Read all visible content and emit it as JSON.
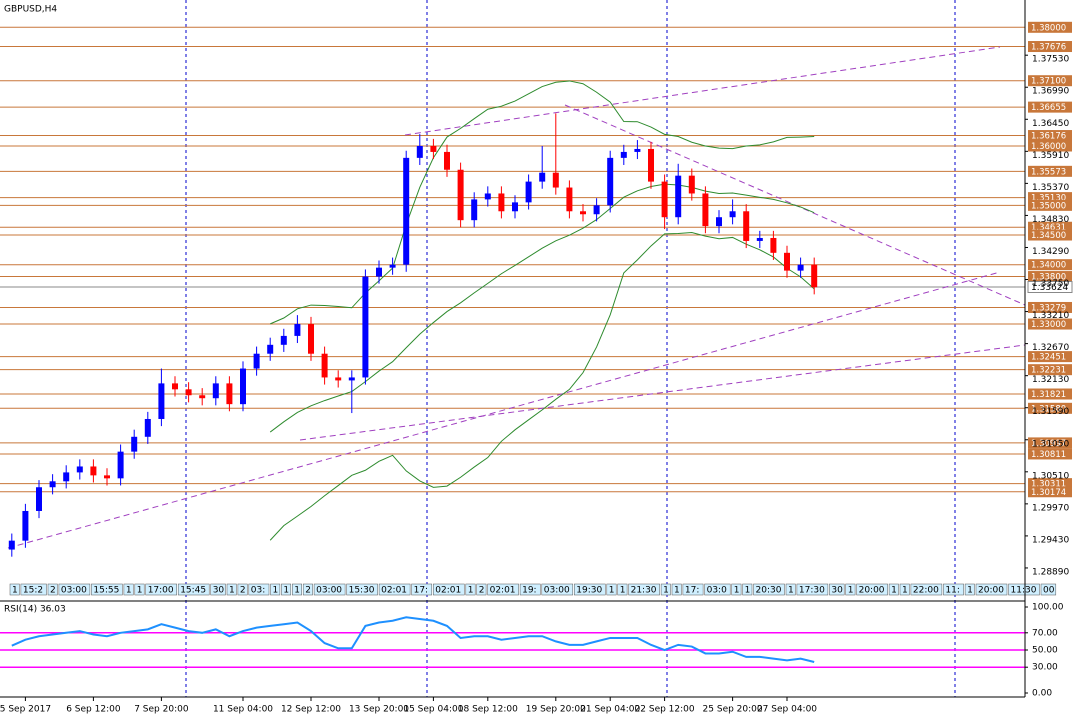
{
  "chart_data": {
    "type": "candlestick",
    "title": "GBPUSD,H4",
    "ylim": [
      1.2835,
      1.3846
    ],
    "yticks": [
      {
        "value": 1.2889,
        "label": "1.28890"
      },
      {
        "value": 1.2943,
        "label": "1.29430"
      },
      {
        "value": 1.2997,
        "label": "1.29970"
      },
      {
        "value": 1.3051,
        "label": "1.30510"
      },
      {
        "value": 1.3105,
        "label": "1.31050"
      },
      {
        "value": 1.3159,
        "label": "1.31590"
      },
      {
        "value": 1.3213,
        "label": "1.32130"
      },
      {
        "value": 1.3267,
        "label": "1.32670"
      },
      {
        "value": 1.3321,
        "label": "1.33210"
      },
      {
        "value": 1.3375,
        "label": "1.33750"
      },
      {
        "value": 1.3429,
        "label": "1.34290"
      },
      {
        "value": 1.3483,
        "label": "1.34830"
      },
      {
        "value": 1.3537,
        "label": "1.35370"
      },
      {
        "value": 1.3591,
        "label": "1.35910"
      },
      {
        "value": 1.3645,
        "label": "1.36450"
      },
      {
        "value": 1.3699,
        "label": "1.36990"
      },
      {
        "value": 1.3753,
        "label": "1.37530"
      }
    ],
    "levels": [
      {
        "value": 1.38,
        "label": "1.38000"
      },
      {
        "value": 1.37676,
        "label": "1.37676"
      },
      {
        "value": 1.371,
        "label": "1.37100"
      },
      {
        "value": 1.36655,
        "label": "1.36655"
      },
      {
        "value": 1.36176,
        "label": "1.36176"
      },
      {
        "value": 1.36,
        "label": "1.36000"
      },
      {
        "value": 1.35573,
        "label": "1.35573"
      },
      {
        "value": 1.3513,
        "label": "1.35130"
      },
      {
        "value": 1.35,
        "label": "1.35000"
      },
      {
        "value": 1.34631,
        "label": "1.34631"
      },
      {
        "value": 1.345,
        "label": "1.34500"
      },
      {
        "value": 1.34,
        "label": "1.34000"
      },
      {
        "value": 1.338,
        "label": "1.33800"
      },
      {
        "value": 1.33279,
        "label": "1.33279"
      },
      {
        "value": 1.33,
        "label": "1.33000"
      },
      {
        "value": 1.32451,
        "label": "1.32451"
      },
      {
        "value": 1.32231,
        "label": "1.32231"
      },
      {
        "value": 1.31821,
        "label": "1.31821"
      },
      {
        "value": 1.3158,
        "label": "1.31580"
      },
      {
        "value": 1.30997,
        "label": "1.30997"
      },
      {
        "value": 1.30811,
        "label": "1.30811"
      },
      {
        "value": 1.30311,
        "label": "1.30311"
      },
      {
        "value": 1.30174,
        "label": "1.30174"
      }
    ],
    "level_color": "#c8773a",
    "current_price": {
      "value": 1.33624,
      "label": "1.33624"
    },
    "x_labels": [
      "5 Sep 2017",
      "6 Sep 12:00",
      "7 Sep 20:00",
      "11 Sep 04:00",
      "12 Sep 12:00",
      "13 Sep 20:00",
      "15 Sep 04:00",
      "18 Sep 12:00",
      "19 Sep 20:00",
      "21 Sep 04:00",
      "22 Sep 12:00",
      "25 Sep 20:00",
      "27 Sep 04:00"
    ],
    "x_label_index": [
      1,
      6,
      11,
      17,
      22,
      27,
      31,
      35,
      40,
      44,
      48,
      53,
      57
    ],
    "time_markers": [
      "1",
      "15:2",
      "2",
      "03:00",
      "15:55",
      "1",
      "1",
      "17:00",
      "15:45",
      "30",
      "1",
      "2",
      "03:",
      "1",
      "1",
      "1",
      "2",
      "03:00",
      "15:30",
      "02:01",
      "17:",
      "02:01",
      "1",
      "2",
      "02:01",
      "19:",
      "03:00",
      "19:30",
      "1",
      "1",
      "21:30",
      "1",
      "1",
      "17:",
      "03:0",
      "1",
      "1",
      "20:30",
      "1",
      "17:30",
      "30",
      "1",
      "20:00",
      "1",
      "1",
      "22:00",
      "11:",
      "1",
      "20:00",
      "11:30",
      "00"
    ],
    "up_color": "#0000ff",
    "down_color": "#ff0000",
    "bands_color": "#2e8b2e",
    "open": [
      1.292,
      1.2935,
      1.2985,
      1.3025,
      1.3035,
      1.305,
      1.306,
      1.3045,
      1.304,
      1.3085,
      1.311,
      1.314,
      1.32,
      1.319,
      1.318,
      1.3175,
      1.32,
      1.3165,
      1.3225,
      1.325,
      1.3265,
      1.328,
      1.33,
      1.325,
      1.321,
      1.3205,
      1.321,
      1.338,
      1.3395,
      1.34,
      1.358,
      1.36,
      1.359,
      1.356,
      1.3475,
      1.351,
      1.352,
      1.349,
      1.3505,
      1.354,
      1.3555,
      1.353,
      1.349,
      1.3485,
      1.35,
      1.358,
      1.359,
      1.3595,
      1.354,
      1.348,
      1.355,
      1.352,
      1.3465,
      1.348,
      1.349,
      1.344,
      1.3445,
      1.342,
      1.339,
      1.34
    ],
    "high": [
      1.2947,
      1.2997,
      1.3037,
      1.3047,
      1.3062,
      1.3072,
      1.3072,
      1.3057,
      1.3097,
      1.3122,
      1.3152,
      1.3225,
      1.3212,
      1.3202,
      1.3192,
      1.3212,
      1.3212,
      1.3237,
      1.3262,
      1.3277,
      1.3292,
      1.3315,
      1.3312,
      1.3262,
      1.3222,
      1.3222,
      1.3392,
      1.3407,
      1.3412,
      1.3592,
      1.362,
      1.3612,
      1.3602,
      1.3572,
      1.3522,
      1.3532,
      1.3532,
      1.3517,
      1.3552,
      1.36,
      1.3655,
      1.3542,
      1.3502,
      1.3512,
      1.3592,
      1.3602,
      1.361,
      1.3607,
      1.3552,
      1.357,
      1.3562,
      1.3532,
      1.3492,
      1.351,
      1.3502,
      1.3457,
      1.3457,
      1.3432,
      1.3412,
      1.3412
    ],
    "low": [
      1.2908,
      1.2923,
      1.2973,
      1.3013,
      1.3023,
      1.3038,
      1.3033,
      1.3028,
      1.3028,
      1.3073,
      1.3098,
      1.3128,
      1.3178,
      1.3168,
      1.3163,
      1.3163,
      1.3153,
      1.3153,
      1.3213,
      1.3238,
      1.3253,
      1.3268,
      1.3238,
      1.3198,
      1.3193,
      1.315,
      1.3198,
      1.3368,
      1.3383,
      1.3388,
      1.3568,
      1.3578,
      1.3548,
      1.3463,
      1.3463,
      1.3498,
      1.3478,
      1.3478,
      1.3493,
      1.3528,
      1.3518,
      1.3478,
      1.3473,
      1.3473,
      1.3488,
      1.3568,
      1.3578,
      1.3528,
      1.346,
      1.3468,
      1.3508,
      1.3453,
      1.3453,
      1.3468,
      1.3428,
      1.3428,
      1.3408,
      1.3378,
      1.3378,
      1.335
    ],
    "close": [
      1.2935,
      1.2985,
      1.3025,
      1.3035,
      1.305,
      1.306,
      1.3045,
      1.304,
      1.3085,
      1.311,
      1.314,
      1.32,
      1.319,
      1.318,
      1.3175,
      1.32,
      1.3165,
      1.3225,
      1.325,
      1.3265,
      1.328,
      1.33,
      1.325,
      1.321,
      1.3205,
      1.321,
      1.338,
      1.3395,
      1.34,
      1.358,
      1.36,
      1.359,
      1.356,
      1.3475,
      1.351,
      1.352,
      1.349,
      1.3505,
      1.354,
      1.3555,
      1.353,
      1.349,
      1.3485,
      1.35,
      1.358,
      1.359,
      1.3595,
      1.354,
      1.348,
      1.355,
      1.352,
      1.3465,
      1.348,
      1.349,
      1.344,
      1.3445,
      1.342,
      1.339,
      1.34,
      1.3362
    ],
    "rsi": {
      "title": "RSI(14) 36.03",
      "color": "#1e90ff",
      "level_color": "#ff00ff",
      "ylim": [
        0,
        100
      ],
      "yticks": [
        {
          "value": 100,
          "label": "100.00"
        },
        {
          "value": 70,
          "label": "70.00"
        },
        {
          "value": 50,
          "label": "50.00"
        },
        {
          "value": 30,
          "label": "30.00"
        },
        {
          "value": 0,
          "label": "0.00"
        }
      ],
      "levels": [
        70,
        50,
        30
      ],
      "values": [
        55,
        62,
        66,
        68,
        70,
        72,
        68,
        66,
        70,
        72,
        74,
        80,
        76,
        72,
        70,
        74,
        66,
        72,
        76,
        78,
        80,
        82,
        72,
        58,
        52,
        52,
        78,
        82,
        84,
        88,
        86,
        84,
        78,
        64,
        66,
        66,
        62,
        64,
        66,
        66,
        60,
        56,
        56,
        60,
        64,
        64,
        64,
        56,
        50,
        56,
        54,
        46,
        46,
        48,
        42,
        42,
        40,
        38,
        40,
        36.03
      ]
    }
  }
}
